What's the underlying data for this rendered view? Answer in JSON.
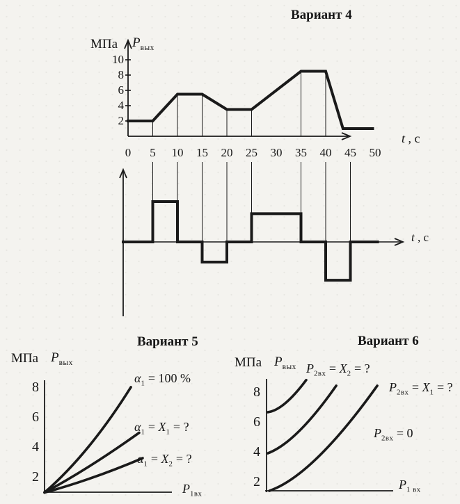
{
  "page": {
    "background": "#f4f3ef",
    "ink": "#1a1a1a"
  },
  "variant4": {
    "title": "Вариант 4",
    "unit": "МПа",
    "ylabel_parts": [
      {
        "t": "P",
        "i": 1
      },
      {
        "t": "вых",
        "s": 1
      }
    ],
    "xlabel_parts": [
      {
        "t": "t",
        "i": 1
      },
      {
        "t": " , с"
      }
    ]
  },
  "variant5": {
    "title": "Вариант 5",
    "unit": "МПа",
    "ylabel_parts": [
      {
        "t": "P",
        "i": 1
      },
      {
        "t": "вых",
        "s": 1
      }
    ],
    "xlabel_parts": [
      {
        "t": "P",
        "i": 1
      },
      {
        "t": "1вх",
        "s": 1
      }
    ],
    "curve_labels": [
      [
        {
          "t": "α",
          "i": 1
        },
        {
          "t": "1",
          "s": 1
        },
        {
          "t": " = 100 %"
        }
      ],
      [
        {
          "t": "α",
          "i": 1
        },
        {
          "t": "1",
          "s": 1
        },
        {
          "t": " = "
        },
        {
          "t": "X",
          "i": 1
        },
        {
          "t": "1",
          "s": 1
        },
        {
          "t": " = ?"
        }
      ],
      [
        {
          "t": "α",
          "i": 1
        },
        {
          "t": "1",
          "s": 1
        },
        {
          "t": " = "
        },
        {
          "t": "X",
          "i": 1
        },
        {
          "t": "2",
          "s": 1
        },
        {
          "t": " = ?"
        }
      ]
    ]
  },
  "variant6": {
    "title": "Вариант 6",
    "unit": "МПа",
    "ylabel_parts": [
      {
        "t": "P",
        "i": 1
      },
      {
        "t": "вых",
        "s": 1
      }
    ],
    "xlabel_parts": [
      {
        "t": "P",
        "i": 1
      },
      {
        "t": "1 вх",
        "s": 1
      }
    ],
    "curve_labels": [
      [
        {
          "t": "P",
          "i": 1
        },
        {
          "t": "2вх",
          "s": 1
        },
        {
          "t": " = "
        },
        {
          "t": "X",
          "i": 1
        },
        {
          "t": "2",
          "s": 1
        },
        {
          "t": " = ?"
        }
      ],
      [
        {
          "t": "P",
          "i": 1
        },
        {
          "t": "2вх",
          "s": 1
        },
        {
          "t": " = "
        },
        {
          "t": "X",
          "i": 1
        },
        {
          "t": "1",
          "s": 1
        },
        {
          "t": " = ?"
        }
      ],
      [
        {
          "t": "P",
          "i": 1
        },
        {
          "t": "2вх",
          "s": 1
        },
        {
          "t": " = 0"
        }
      ]
    ]
  },
  "chart_data": [
    {
      "id": "variant4-output",
      "type": "line",
      "title": "Вариант 4",
      "ylabel": "МПа, Pвых",
      "xlabel": "t, с",
      "xlim": [
        0,
        50
      ],
      "ylim": [
        0,
        10
      ],
      "x_ticks": [
        0,
        5,
        10,
        15,
        20,
        25,
        30,
        35,
        40,
        45,
        50
      ],
      "y_ticks": [
        2,
        4,
        6,
        8,
        10
      ],
      "grid": "vertical-connectors",
      "gridline_ts": [
        5,
        10,
        15,
        20,
        25,
        35,
        40
      ],
      "x": [
        0,
        5,
        10,
        15,
        20,
        25,
        35,
        40,
        43.5,
        49.5
      ],
      "y": [
        2,
        2,
        5.5,
        5.5,
        3.5,
        3.5,
        8.5,
        8.5,
        1,
        1
      ]
    },
    {
      "id": "variant4-input",
      "type": "step",
      "xlabel": "t, с",
      "xlim": [
        0,
        50
      ],
      "gridline_ts": [
        5,
        10,
        15,
        20,
        25,
        35,
        40,
        45
      ],
      "segments": [
        {
          "t": [
            0,
            5
          ],
          "u": 0
        },
        {
          "t": [
            5,
            10
          ],
          "u": 2
        },
        {
          "t": [
            10,
            15
          ],
          "u": 0
        },
        {
          "t": [
            15,
            20
          ],
          "u": -1
        },
        {
          "t": [
            20,
            25
          ],
          "u": 0
        },
        {
          "t": [
            25,
            35
          ],
          "u": 1.4
        },
        {
          "t": [
            35,
            40
          ],
          "u": 0
        },
        {
          "t": [
            40,
            45
          ],
          "u": -1.9
        },
        {
          "t": [
            45,
            50.5
          ],
          "u": 0
        }
      ]
    },
    {
      "id": "variant5",
      "type": "line",
      "title": "Вариант 5",
      "ylabel": "МПа, Pвых",
      "xlabel": "P1вх",
      "y_ticks": [
        2,
        4,
        6,
        8
      ],
      "ylim": [
        0,
        9
      ],
      "series": [
        {
          "name": "α1 = 100 %",
          "points": [
            [
              0,
              1.0
            ],
            [
              0.344,
              4.05
            ],
            [
              0.678,
              8.05
            ]
          ]
        },
        {
          "name": "α1 = X1 = ?",
          "points": [
            [
              0,
              1.0
            ],
            [
              0.36,
              2.8
            ],
            [
              0.743,
              5.0
            ]
          ]
        },
        {
          "name": "α1 = X2 = ?",
          "points": [
            [
              0,
              1.0
            ],
            [
              0.377,
              2.0
            ],
            [
              0.77,
              3.3
            ]
          ]
        }
      ]
    },
    {
      "id": "variant6",
      "type": "line",
      "title": "Вариант 6",
      "ylabel": "МПа, Pвых",
      "xlabel": "P1 вх",
      "y_ticks": [
        2,
        4,
        6,
        8
      ],
      "ylim": [
        0,
        9
      ],
      "series": [
        {
          "name": "P2вх = X2 = ?",
          "points": [
            [
              0.01,
              6.7
            ],
            [
              0.148,
              7.3
            ],
            [
              0.313,
              8.85
            ]
          ]
        },
        {
          "name": "P2вх = X1 = ?",
          "points": [
            [
              0.01,
              3.95
            ],
            [
              0.258,
              5.44
            ],
            [
              0.55,
              8.47
            ]
          ]
        },
        {
          "name": "P2вх = 0",
          "points": [
            [
              0.022,
              1.44
            ],
            [
              0.407,
              3.7
            ],
            [
              0.874,
              8.47
            ]
          ]
        }
      ]
    }
  ]
}
